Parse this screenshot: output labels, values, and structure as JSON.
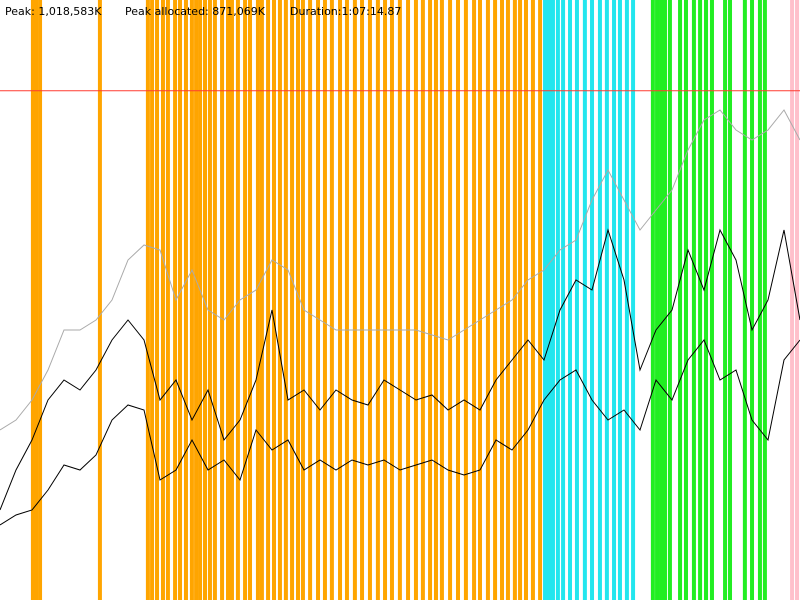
{
  "chart_data": {
    "type": "line",
    "header": [
      "Peak: 1,018,583K",
      "Peak allocated: 871,069K",
      "Duration:1:07:14.87"
    ],
    "xlim": [
      0,
      4035
    ],
    "ylim": [
      0,
      1200000
    ],
    "reference_line": {
      "value": 1018583,
      "color": "#ff3b30"
    },
    "x": [
      0,
      80.7,
      161.4,
      242.1,
      322.8,
      403.5,
      484.2,
      564.9,
      645.6,
      726.3,
      807,
      887.7,
      968.4,
      1049.1,
      1129.8,
      1210.5,
      1291.2,
      1371.9,
      1452.6,
      1533.3,
      1614,
      1694.7,
      1775.4,
      1856.1,
      1936.8,
      2017.5,
      2098.2,
      2178.9,
      2259.6,
      2340.3,
      2421,
      2501.7,
      2582.4,
      2663.1,
      2743.8,
      2824.5,
      2905.2,
      2985.9,
      3066.6,
      3147.3,
      3228,
      3308.7,
      3389.4,
      3470.1,
      3550.8,
      3631.5,
      3712.2,
      3792.9,
      3873.6,
      3954.3,
      4035
    ],
    "series": [
      {
        "color": "#aaaaaa",
        "values": [
          340000,
          360000,
          400000,
          460000,
          540000,
          540000,
          560000,
          600000,
          680000,
          710000,
          700000,
          600000,
          660000,
          580000,
          560000,
          600000,
          620000,
          680000,
          660000,
          580000,
          560000,
          540000,
          540000,
          540000,
          540000,
          540000,
          540000,
          530000,
          520000,
          540000,
          560000,
          580000,
          600000,
          640000,
          660000,
          700000,
          720000,
          800000,
          860000,
          800000,
          740000,
          780000,
          820000,
          900000,
          960000,
          980000,
          940000,
          920000,
          940000,
          980000,
          920000
        ]
      },
      {
        "color": "#000000",
        "values": [
          180000,
          260000,
          320000,
          400000,
          440000,
          420000,
          460000,
          520000,
          560000,
          520000,
          400000,
          440000,
          360000,
          420000,
          320000,
          360000,
          440000,
          580000,
          400000,
          420000,
          380000,
          420000,
          400000,
          390000,
          440000,
          420000,
          400000,
          410000,
          380000,
          400000,
          380000,
          440000,
          480000,
          520000,
          480000,
          580000,
          640000,
          620000,
          740000,
          640000,
          460000,
          540000,
          580000,
          700000,
          620000,
          740000,
          680000,
          540000,
          600000,
          740000,
          560000
        ]
      },
      {
        "color": "#000000",
        "values": [
          150000,
          170000,
          180000,
          220000,
          270000,
          260000,
          290000,
          360000,
          390000,
          380000,
          240000,
          260000,
          320000,
          260000,
          280000,
          240000,
          340000,
          300000,
          320000,
          260000,
          280000,
          260000,
          280000,
          270000,
          280000,
          260000,
          270000,
          280000,
          260000,
          250000,
          260000,
          320000,
          300000,
          340000,
          400000,
          440000,
          460000,
          400000,
          360000,
          380000,
          340000,
          440000,
          400000,
          480000,
          520000,
          440000,
          460000,
          360000,
          320000,
          480000,
          520000
        ]
      }
    ],
    "markers": [
      {
        "color": "#ffa500",
        "x": [
          166,
          182,
          202,
          504,
          746,
          767,
          792,
          822,
          847,
          883,
          908,
          938,
          968,
          989,
          1009,
          1034,
          1059,
          1084,
          1120,
          1150,
          1170,
          1200,
          1236,
          1261,
          1301,
          1321,
          1352,
          1382,
          1412,
          1442,
          1473,
          1503,
          1528,
          1564,
          1604,
          1639,
          1674,
          1715,
          1750,
          1790,
          1826,
          1866,
          1906,
          1942,
          1977,
          2017,
          2058,
          2098,
          2133,
          2169,
          2199,
          2229,
          2270,
          2310,
          2350,
          2391,
          2421,
          2461,
          2497,
          2532,
          2562,
          2597,
          2623,
          2653,
          2688,
          2724
        ]
      },
      {
        "color": "#22e6ee",
        "x": [
          2749,
          2769,
          2789,
          2814,
          2840,
          2875,
          2910,
          2950,
          2986,
          3026,
          3061,
          3097,
          3127,
          3162,
          3193
        ]
      },
      {
        "color": "#22ee22",
        "x": [
          3293,
          3314,
          3334,
          3354,
          3379,
          3430,
          3460,
          3500,
          3531,
          3561,
          3591,
          3657,
          3682,
          3757,
          3793,
          3833,
          3858
        ]
      },
      {
        "color": "#ffc0cb",
        "x": [
          3995,
          4020
        ]
      }
    ]
  }
}
